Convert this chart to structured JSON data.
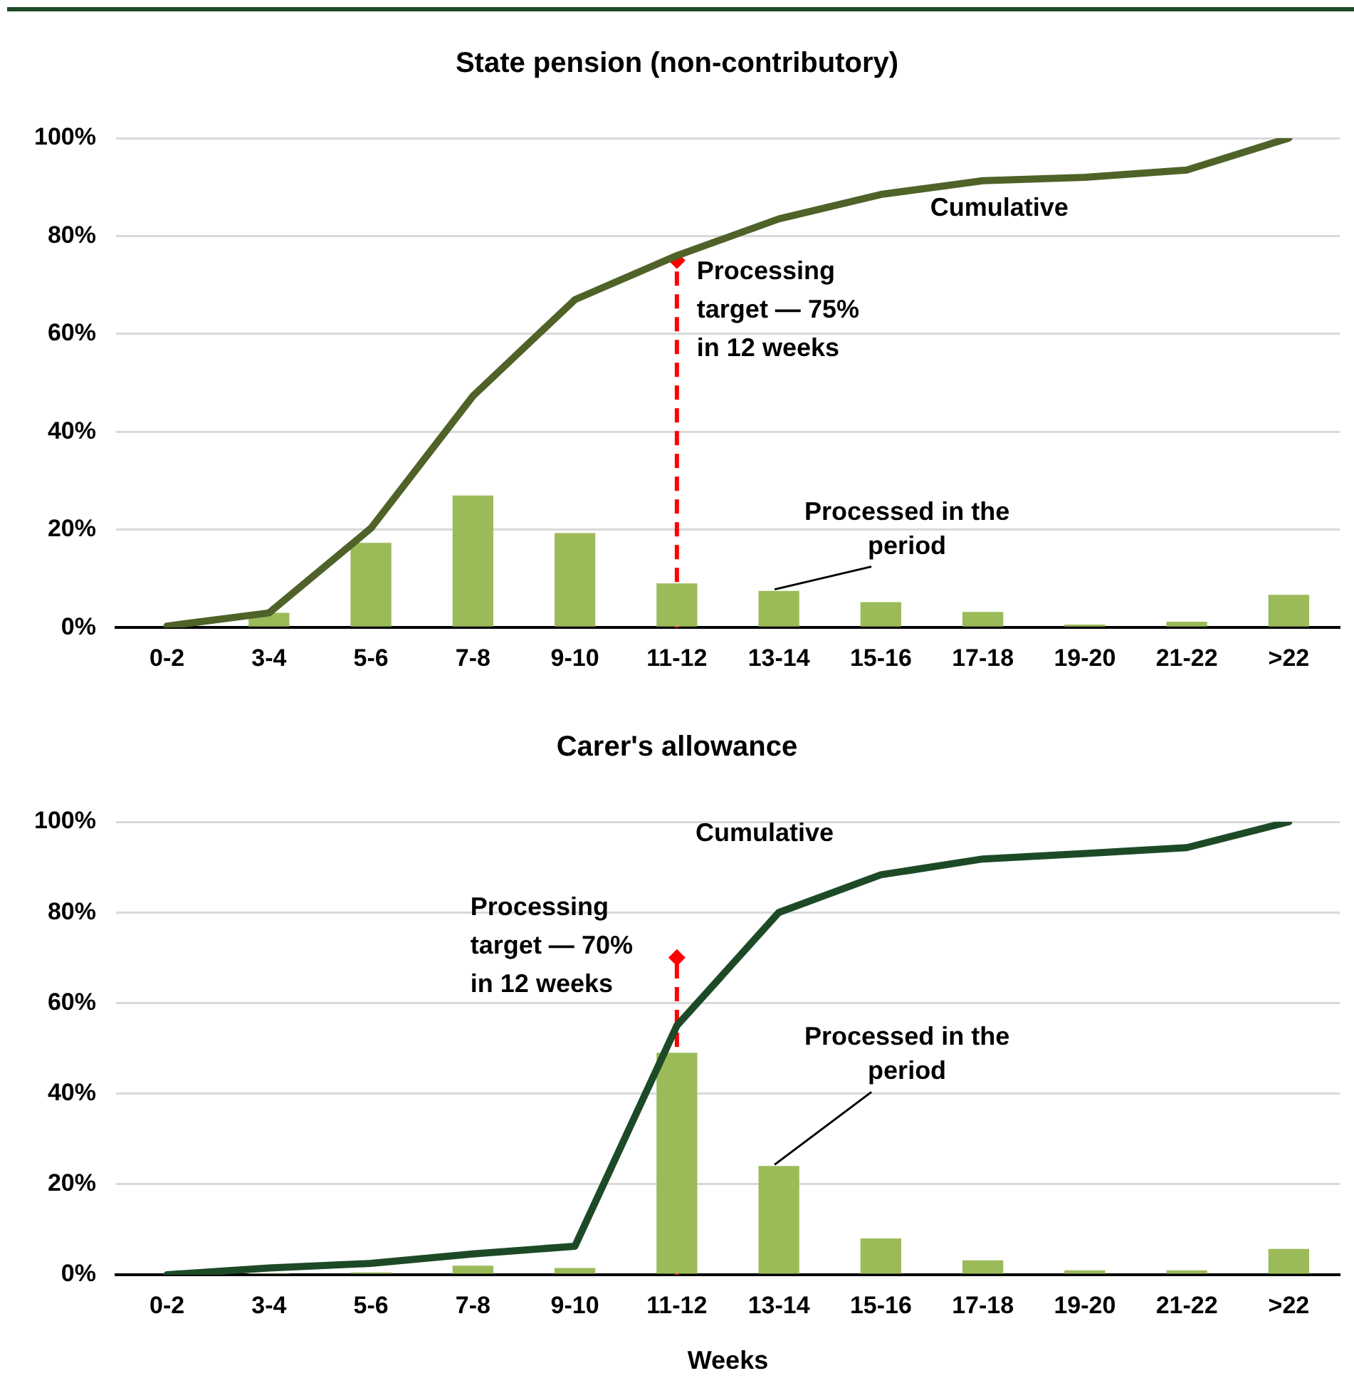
{
  "chart_data": [
    {
      "type": "bar",
      "title": "State pension (non-contributory)",
      "categories": [
        "0-2",
        "3-4",
        "5-6",
        "7-8",
        "9-10",
        "11-12",
        "13-14",
        "15-16",
        "17-18",
        "19-20",
        "21-22",
        ">22"
      ],
      "series": [
        {
          "name": "Processed in the period",
          "color": "#9bbb59",
          "values": [
            0,
            3,
            17.3,
            27,
            19.3,
            9,
            7.5,
            5.2,
            3.2,
            0.6,
            1.2,
            6.7
          ]
        },
        {
          "name": "Cumulative",
          "type": "line",
          "color": "#4f6228",
          "values": [
            0.3,
            3,
            20.3,
            47.3,
            67,
            76,
            83.5,
            88.5,
            91.3,
            92,
            93.5,
            100
          ]
        }
      ],
      "ylim": [
        0,
        100
      ],
      "yticks": [
        {
          "value": 0,
          "label": "0%"
        },
        {
          "value": 20,
          "label": "20%"
        },
        {
          "value": 40,
          "label": "40%"
        },
        {
          "value": 60,
          "label": "60%"
        },
        {
          "value": 80,
          "label": "80%"
        },
        {
          "value": 100,
          "label": "100%"
        }
      ],
      "grid": "y",
      "legend": false,
      "marker": "none",
      "ref_lines": [
        {
          "axis": "x",
          "value": "11-12",
          "color": "#ff0000",
          "line_style": "dashed"
        }
      ],
      "annotations": [
        {
          "text": "Processing target — 75% in 12 weeks",
          "x": "11-12",
          "y": 75
        }
      ]
    },
    {
      "type": "bar",
      "title": "Carer's allowance",
      "xlabel": "Weeks",
      "categories": [
        "0-2",
        "3-4",
        "5-6",
        "7-8",
        "9-10",
        "11-12",
        "13-14",
        "15-16",
        "17-18",
        "19-20",
        "21-22",
        ">22"
      ],
      "series": [
        {
          "name": "Processed in the period",
          "color": "#9bbb59",
          "values": [
            0,
            0.3,
            0.5,
            2,
            1.5,
            49,
            24,
            8,
            3.2,
            1,
            1,
            5.7
          ]
        },
        {
          "name": "Cumulative",
          "type": "line",
          "color": "#1d4a26",
          "values": [
            0,
            1.5,
            2.5,
            4.6,
            6.3,
            55,
            80,
            88.3,
            91.8,
            93,
            94.3,
            100
          ]
        }
      ],
      "ylim": [
        0,
        100
      ],
      "yticks": [
        {
          "value": 0,
          "label": "0%"
        },
        {
          "value": 20,
          "label": "20%"
        },
        {
          "value": 40,
          "label": "40%"
        },
        {
          "value": 60,
          "label": "60%"
        },
        {
          "value": 80,
          "label": "80%"
        },
        {
          "value": 100,
          "label": "100%"
        }
      ],
      "grid": "y",
      "legend": false,
      "marker": "none",
      "ref_lines": [
        {
          "axis": "x",
          "value": "11-12",
          "color": "#ff0000",
          "line_style": "dashed"
        }
      ],
      "annotations": [
        {
          "text": "Processing target — 70% in 12 weeks",
          "x": "11-12",
          "y": 70
        }
      ]
    }
  ]
}
